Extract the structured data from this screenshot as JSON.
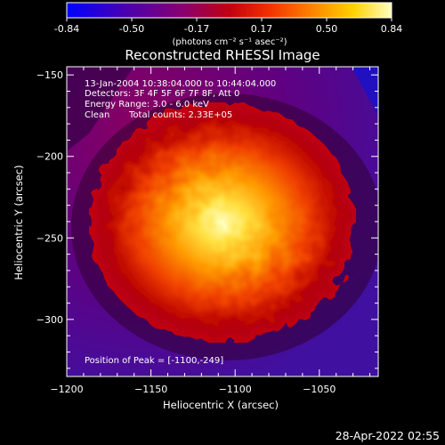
{
  "colorbar": {
    "ticks": [
      "-0.84",
      "-0.50",
      "-0.17",
      "0.17",
      "0.50",
      "0.84"
    ],
    "units_label": "(photons cm⁻² s⁻¹ asec⁻²)",
    "range": [
      -0.84,
      0.84
    ]
  },
  "title": "Reconstructed RHESSI Image",
  "annotations": {
    "time_range": "13-Jan-2004 10:38:04.000 to 10:44:04.000",
    "detectors": "Detectors: 3F 4F 5F 6F 7F 8F, Att 0",
    "energy_range": "Energy Range: 3.0 - 6.0 keV",
    "clean": "Clean",
    "total_counts": "Total counts: 2.33E+05",
    "peak_position": "Position of Peak = [-1100,-249]"
  },
  "timestamp": "28-Apr-2022 02:55",
  "colors": {
    "background": "#000000",
    "colormap": [
      "#0000ff",
      "#4000c0",
      "#800080",
      "#a00040",
      "#d00000",
      "#ff5000",
      "#ffa000",
      "#ffe000",
      "#ffffb0"
    ]
  },
  "chart_data": {
    "type": "heatmap",
    "title": "Reconstructed RHESSI Image",
    "xlabel": "Heliocentric X (arcsec)",
    "ylabel": "Heliocentric Y (arcsec)",
    "xlim": [
      -1200,
      -1015
    ],
    "ylim": [
      -335,
      -145
    ],
    "xticks": [
      -1200,
      -1150,
      -1100,
      -1050
    ],
    "xtick_labels": [
      "−1200",
      "−1150",
      "−1100",
      "−1050"
    ],
    "yticks": [
      -150,
      -200,
      -250,
      -300
    ],
    "ytick_labels": [
      "−150",
      "−200",
      "−250",
      "−300"
    ],
    "peak": {
      "x": -1100,
      "y": -249
    },
    "value_range": [
      -0.84,
      0.84
    ],
    "grid": false
  }
}
